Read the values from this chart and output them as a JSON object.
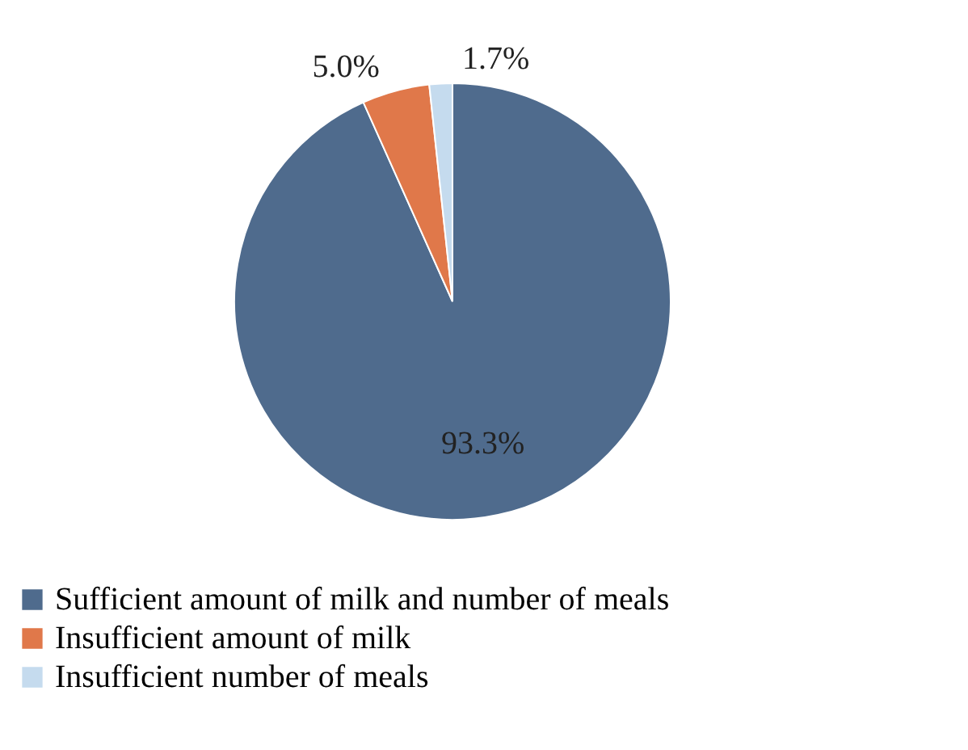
{
  "chart_data": {
    "type": "pie",
    "categories": [
      "Sufficient amount of milk and number of meals",
      "Insufficient amount of milk",
      "Insufficient number of meals"
    ],
    "values": [
      93.3,
      5.0,
      1.7
    ],
    "value_labels": [
      "93.3%",
      "5.0%",
      "1.7%"
    ],
    "colors": [
      "#4f6b8d",
      "#e0784a",
      "#c5dbee"
    ],
    "legend": "bottom"
  }
}
